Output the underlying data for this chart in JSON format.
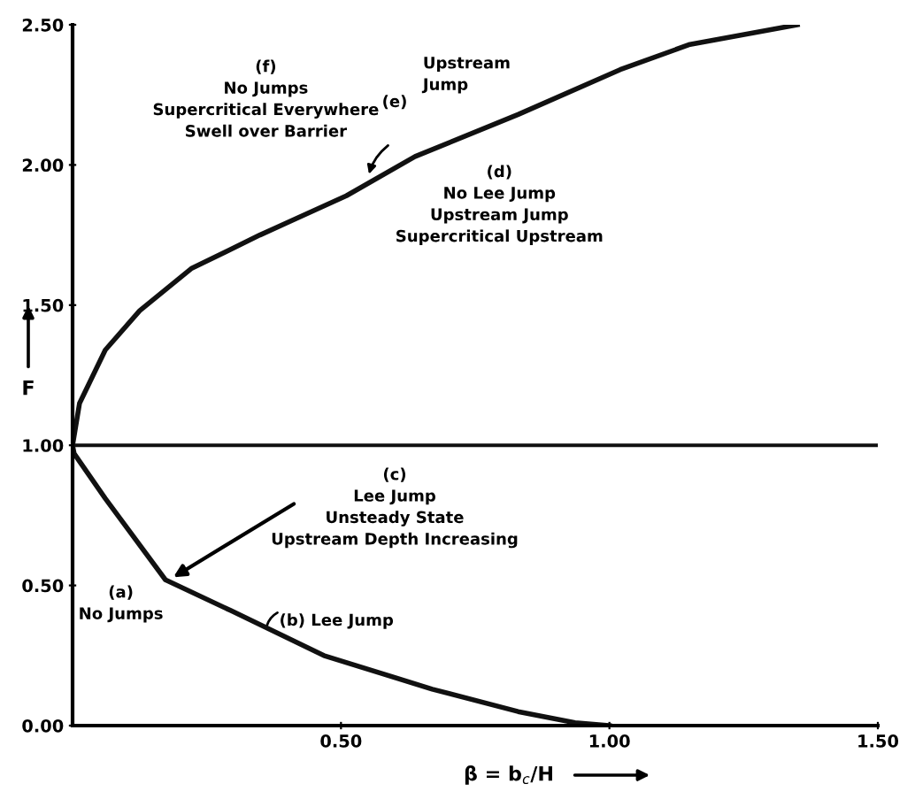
{
  "chart_data": {
    "type": "line",
    "xlabel": "β = b$_{c}$/H",
    "ylabel": "F",
    "series": [
      {
        "color": "#111111",
        "x": [
          1.0,
          0.936,
          0.83,
          0.67,
          0.468,
          0.295,
          0.173,
          0.061,
          0.003,
          0,
          0.013,
          0.061,
          0.125,
          0.221,
          0.349,
          0.51,
          0.638,
          0.83,
          1.02,
          1.15,
          1.35
        ],
        "values": [
          0.0,
          0.01,
          0.05,
          0.13,
          0.25,
          0.41,
          0.52,
          0.81,
          0.97,
          1.0,
          1.15,
          1.34,
          1.48,
          1.63,
          1.75,
          1.89,
          2.03,
          2.18,
          2.34,
          2.43,
          2.5
        ]
      }
    ],
    "ref_lines": [
      {
        "axis": "y",
        "value": 1.0,
        "color": "#111111"
      }
    ],
    "annotations": [
      "(f)\nNo Jumps\nSupercritical Everywhere\nSwell over Barrier",
      "Upstream\nJump",
      "(e)",
      "(d)\nNo Lee Jump\nUpstream Jump\nSupercritical Upstream",
      {
        "text": "(c)\nLee Jump\nUnsteady State\nUpstream Depth Increasing",
        "x": 0.18,
        "y": 0.52
      },
      "(a)\nNo Jumps",
      {
        "text": "(b) Lee Jump",
        "x": 0.36,
        "y": 0.34
      }
    ],
    "xlim": [
      0,
      1.5
    ],
    "ylim": [
      0,
      2.5
    ],
    "xticks": [
      {
        "value": 0.5,
        "label": "0.50"
      },
      {
        "value": 1.0,
        "label": "1.00"
      },
      {
        "value": 1.5,
        "label": "1.50"
      }
    ],
    "yticks": [
      {
        "value": 0.0,
        "label": "0.00"
      },
      {
        "value": 0.5,
        "label": "0.50"
      },
      {
        "value": 1.0,
        "label": "1.00"
      },
      {
        "value": 1.5,
        "label": "1.50"
      },
      {
        "value": 2.0,
        "label": "2.00"
      },
      {
        "value": 2.5,
        "label": "2.50"
      }
    ],
    "grid": false,
    "legend": false,
    "marker": "none",
    "line_style": "solid"
  }
}
